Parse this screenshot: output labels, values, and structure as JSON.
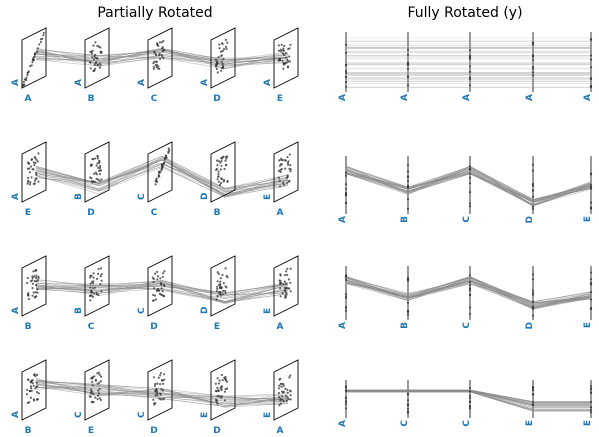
{
  "panels": {
    "left": {
      "title": "Partially Rotated"
    },
    "right": {
      "title": "Fully Rotated (y)"
    }
  },
  "colors": {
    "axis_label": "#1f77b4",
    "line": "#8a8a8a",
    "point": "#333333",
    "frame": "#000000"
  },
  "left_rows": [
    {
      "vert": [
        "A",
        "A",
        "A",
        "A",
        "A"
      ],
      "horiz": [
        "A",
        "B",
        "C",
        "D",
        "E"
      ]
    },
    {
      "vert": [
        "A",
        "B",
        "C",
        "D",
        "E"
      ],
      "horiz": [
        "E",
        "D",
        "C",
        "B",
        "A"
      ]
    },
    {
      "vert": [
        "A",
        "B",
        "C",
        "D",
        "E"
      ],
      "horiz": [
        "B",
        "C",
        "D",
        "E",
        "A"
      ]
    },
    {
      "vert": [
        "A",
        "C",
        "C",
        "E",
        "E"
      ],
      "horiz": [
        "B",
        "E",
        "D",
        "D",
        "A"
      ]
    }
  ],
  "right_rows": [
    {
      "labels": [
        "A",
        "A",
        "A",
        "A",
        "A"
      ],
      "profile": [
        0,
        0,
        0,
        0,
        0
      ]
    },
    {
      "labels": [
        "A",
        "B",
        "C",
        "D",
        "E"
      ],
      "profile": [
        0,
        0.55,
        0,
        0.85,
        0.4
      ]
    },
    {
      "labels": [
        "A",
        "B",
        "C",
        "D",
        "E"
      ],
      "profile": [
        0,
        0.5,
        0,
        0.75,
        0.45
      ]
    },
    {
      "labels": [
        "A",
        "C",
        "C",
        "E",
        "E"
      ],
      "profile": [
        0,
        0,
        0,
        0.45,
        0.45
      ]
    }
  ]
}
